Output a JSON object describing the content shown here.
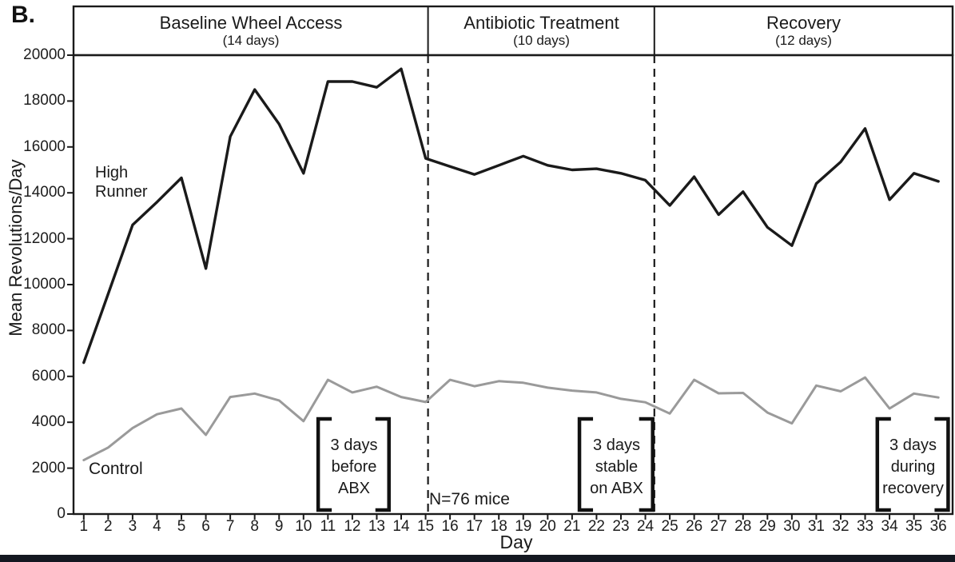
{
  "panel_label": "B.",
  "chart_data": {
    "type": "line",
    "title": "",
    "xlabel": "Day",
    "ylabel": "Mean Revolutions/Day",
    "ylim": [
      0,
      20000
    ],
    "y_tick_step": 2000,
    "grid": false,
    "legend_position": "inline-labels",
    "x": [
      1,
      2,
      3,
      4,
      5,
      6,
      7,
      8,
      9,
      10,
      11,
      12,
      13,
      14,
      15,
      16,
      17,
      18,
      19,
      20,
      21,
      22,
      23,
      24,
      25,
      26,
      27,
      28,
      29,
      30,
      31,
      32,
      33,
      34,
      35,
      36
    ],
    "series": [
      {
        "name": "High Runner",
        "color": "#1a1a1a",
        "values": [
          6600,
          9600,
          12600,
          13600,
          14650,
          10700,
          16450,
          18500,
          17000,
          14850,
          18850,
          18850,
          18600,
          19400,
          15500,
          15150,
          14800,
          15200,
          15600,
          15200,
          15000,
          15050,
          14850,
          14550,
          13450,
          14700,
          13050,
          14050,
          12500,
          11700,
          14400,
          15350,
          16800,
          13700,
          14850,
          14500
        ]
      },
      {
        "name": "Control",
        "color": "#9a9a9a",
        "values": [
          2350,
          2900,
          3750,
          4350,
          4600,
          3450,
          5100,
          5250,
          4950,
          4050,
          5850,
          5300,
          5550,
          5100,
          4880,
          5850,
          5570,
          5790,
          5720,
          5510,
          5380,
          5300,
          5020,
          4870,
          4380,
          5850,
          5260,
          5280,
          4420,
          3950,
          5600,
          5350,
          5950,
          4600,
          5250,
          5080
        ]
      }
    ],
    "phases": [
      {
        "title": "Baseline Wheel Access",
        "subtitle": "(14 days)",
        "start_day": 1,
        "end_day": 14
      },
      {
        "title": "Antibiotic Treatment",
        "subtitle": "(10 days)",
        "start_day": 15,
        "end_day": 24
      },
      {
        "title": "Recovery",
        "subtitle": "(12 days)",
        "start_day": 25,
        "end_day": 36
      }
    ],
    "phase_divider_days": [
      15.1,
      24.37
    ],
    "annotations": {
      "high_runner_label": [
        "High",
        "Runner"
      ],
      "control_label": "Control",
      "n_label": "N=76 mice",
      "brackets": [
        {
          "lines": [
            "3 days",
            "before",
            "ABX"
          ],
          "from_day": 10.6,
          "to_day": 13.5
        },
        {
          "lines": [
            "3 days",
            "stable",
            "on ABX"
          ],
          "from_day": 21.3,
          "to_day": 24.3
        },
        {
          "lines": [
            "3 days",
            "during",
            "recovery"
          ],
          "from_day": 33.5,
          "to_day": 36.4
        }
      ]
    }
  }
}
